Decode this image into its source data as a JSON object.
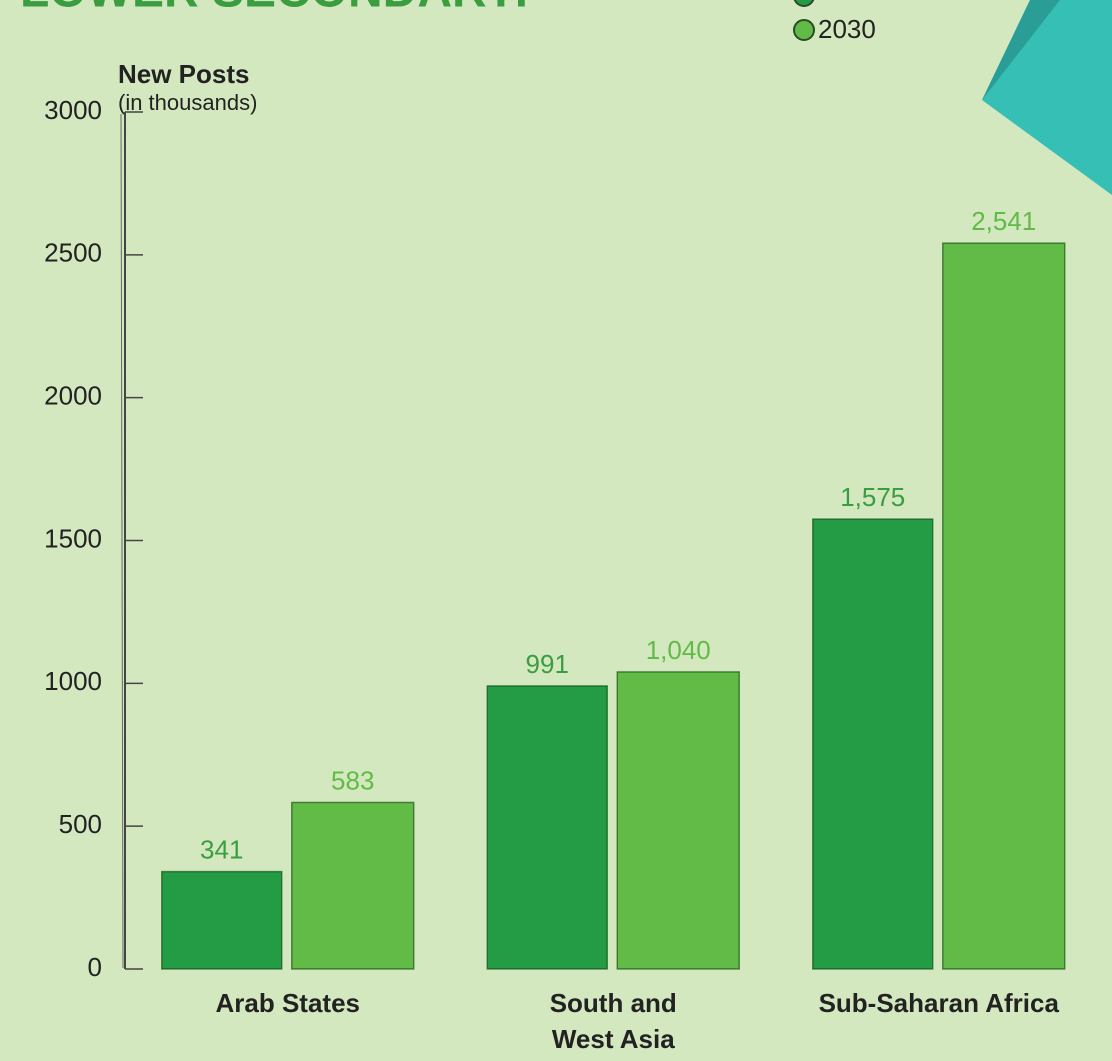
{
  "chart_data": {
    "type": "bar",
    "title": "LOWER SECONDARY:",
    "y_label": "New Posts",
    "y_sublabel": "(in thousands)",
    "categories": [
      "Arab States",
      "South and\nWest Asia",
      "Sub-Saharan Africa"
    ],
    "series": [
      {
        "color": "#239c45",
        "label_color": "#3a9d3f",
        "values": [
          341,
          991,
          1575
        ],
        "value_labels": [
          "341",
          "991",
          "1,575"
        ]
      },
      {
        "name": "2030",
        "color": "#62bb46",
        "label_color": "#62bb46",
        "values": [
          583,
          1040,
          2541
        ],
        "value_labels": [
          "583",
          "1,040",
          "2,541"
        ]
      }
    ],
    "ylim": [
      0,
      3000
    ],
    "yticks": [
      0,
      500,
      1000,
      1500,
      2000,
      2500,
      3000
    ],
    "grid": false
  }
}
